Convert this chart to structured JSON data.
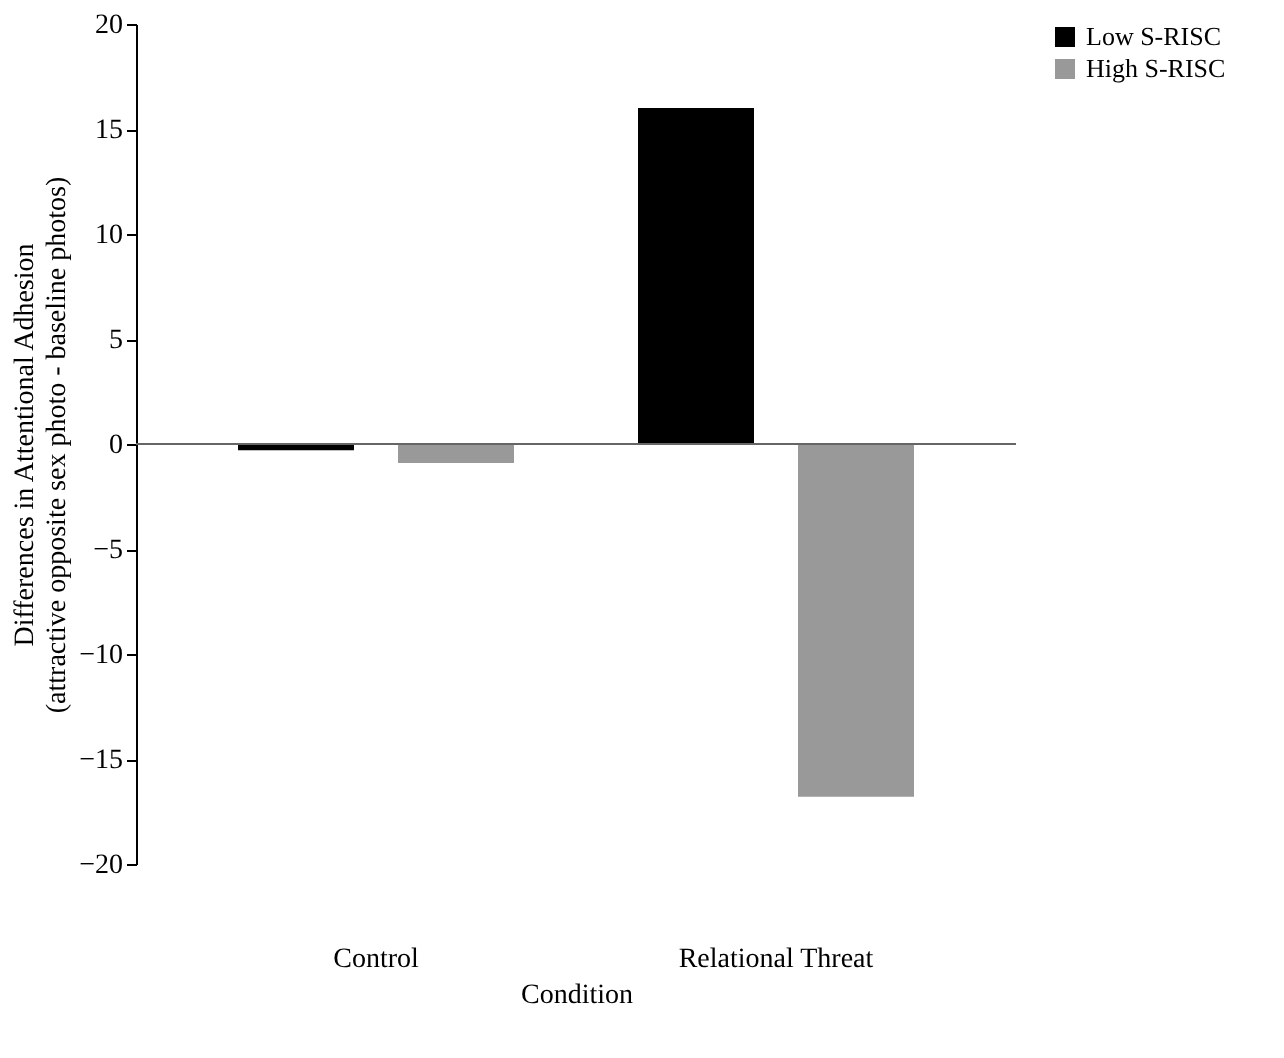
{
  "chart_data": {
    "type": "bar",
    "xlabel": "Condition",
    "ylabel": "Differences in Attentional Adhesion\n(attractive opposite sex photo - baseline photos)",
    "categories": [
      "Control",
      "Relational Threat"
    ],
    "series": [
      {
        "name": "Low S-RISC",
        "color": "#000000",
        "values": [
          -0.3,
          16.0
        ]
      },
      {
        "name": "High S-RISC",
        "color": "#999999",
        "values": [
          -0.9,
          -16.8
        ]
      }
    ],
    "ylim": [
      -20,
      20
    ],
    "yticks": [
      -20,
      -15,
      -10,
      -5,
      0,
      5,
      10,
      15,
      20
    ],
    "ref_lines": [
      {
        "axis": "y",
        "value": 0,
        "color": "#666666"
      }
    ],
    "legend": "right"
  }
}
